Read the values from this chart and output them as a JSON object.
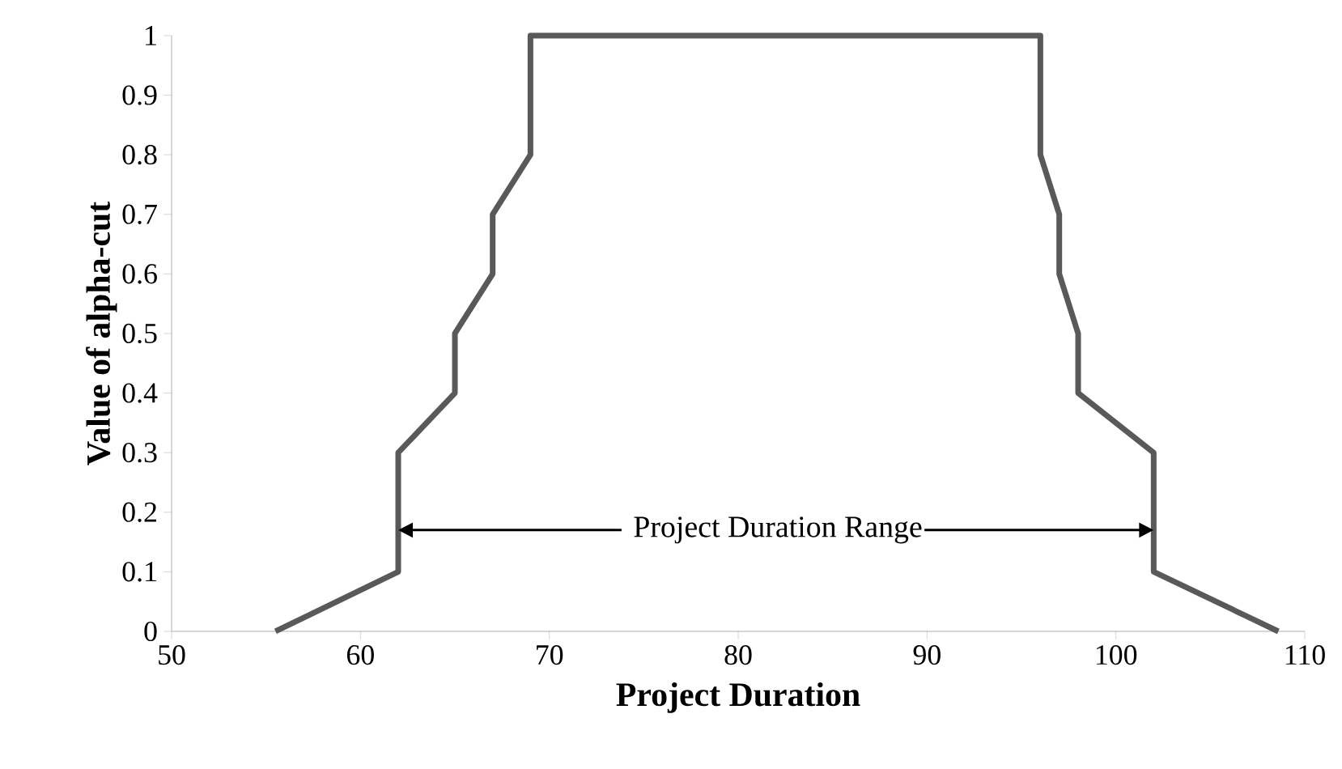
{
  "chart_data": {
    "type": "line",
    "xlabel": "Project Duration",
    "ylabel": "Value of alpha-cut",
    "x": [
      55.5,
      62,
      62,
      65,
      65,
      67,
      67,
      69,
      69,
      96,
      96,
      97,
      97,
      98,
      98,
      102,
      102,
      108.6
    ],
    "series": [
      {
        "color": "#595959",
        "values": [
          0,
          0.1,
          0.3,
          0.4,
          0.5,
          0.6,
          0.7,
          0.8,
          1,
          1,
          0.8,
          0.7,
          0.6,
          0.5,
          0.4,
          0.3,
          0.1,
          0
        ]
      }
    ],
    "xlim": [
      50,
      110
    ],
    "ylim": [
      0,
      1
    ],
    "xticks": [
      50,
      60,
      70,
      80,
      90,
      100,
      110
    ],
    "yticks": [
      0,
      0.1,
      0.2,
      0.3,
      0.4,
      0.5,
      0.6,
      0.7,
      0.8,
      0.9,
      1
    ],
    "annotations": [
      {
        "text": "Project Duration Range",
        "x": 62,
        "y": 0.17
      }
    ],
    "grid": false,
    "marker": "none",
    "line_style": "solid"
  }
}
